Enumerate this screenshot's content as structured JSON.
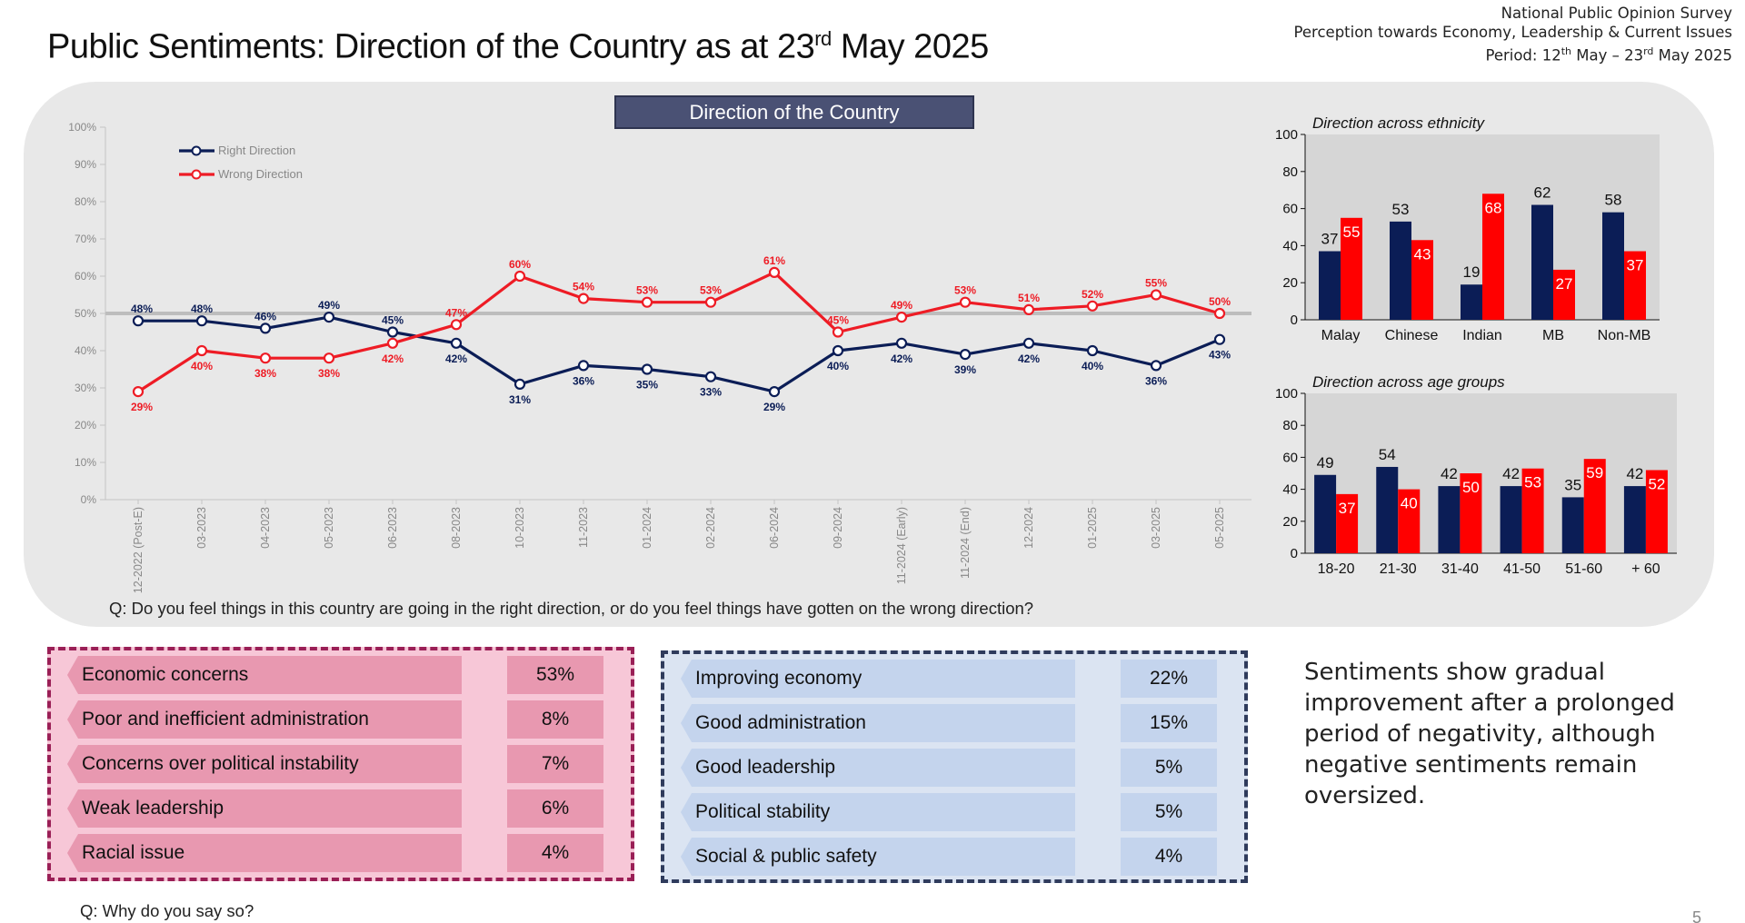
{
  "header": {
    "title_main": "Public Sentiments: Direction of the Country as at 23",
    "title_sup": "rd",
    "title_end": " May 2025",
    "survey_line1": "National Public Opinion Survey",
    "survey_line2": "Perception towards Economy, Leadership & Current Issues",
    "period_pre": "Period: 12",
    "period_sup1": "th",
    "period_mid": " May – 23",
    "period_sup2": "rd",
    "period_end": " May 2025"
  },
  "chart_data": [
    {
      "type": "line",
      "title": "Direction of the Country",
      "categories": [
        "12-2022 (Post-E)",
        "03-2023",
        "04-2023",
        "05-2023",
        "06-2023",
        "08-2023",
        "10-2023",
        "11-2023",
        "01-2024",
        "02-2024",
        "06-2024",
        "09-2024",
        "11-2024 (Early)",
        "11-2024 (End)",
        "12-2024",
        "01-2025",
        "03-2025",
        "05-2025"
      ],
      "series": [
        {
          "name": "Right Direction",
          "color": "#0b1d56",
          "values": [
            48,
            48,
            46,
            49,
            45,
            42,
            31,
            36,
            35,
            33,
            29,
            40,
            42,
            39,
            42,
            40,
            36,
            43
          ]
        },
        {
          "name": "Wrong Direction",
          "color": "#ee1c25",
          "values": [
            29,
            40,
            38,
            38,
            42,
            47,
            60,
            54,
            53,
            53,
            61,
            45,
            49,
            53,
            51,
            52,
            55,
            50
          ]
        }
      ],
      "ylim": [
        0,
        100
      ],
      "yticks": [
        "0%",
        "10%",
        "20%",
        "30%",
        "40%",
        "50%",
        "60%",
        "70%",
        "80%",
        "90%",
        "100%"
      ],
      "reference_line": 50,
      "legend": "top-left"
    },
    {
      "type": "bar",
      "title": "Direction across ethnicity",
      "categories": [
        "Malay",
        "Chinese",
        "Indian",
        "MB",
        "Non-MB"
      ],
      "series": [
        {
          "name": "Right Direction",
          "color": "#0b1d56",
          "values": [
            37,
            53,
            19,
            62,
            58
          ]
        },
        {
          "name": "Wrong Direction",
          "color": "#ff0000",
          "values": [
            55,
            43,
            68,
            27,
            37
          ]
        }
      ],
      "ylim": [
        0,
        100
      ],
      "yticks": [
        "0",
        "20",
        "40",
        "60",
        "80",
        "100"
      ]
    },
    {
      "type": "bar",
      "title": "Direction across age groups",
      "categories": [
        "18-20",
        "21-30",
        "31-40",
        "41-50",
        "51-60",
        "+ 60"
      ],
      "series": [
        {
          "name": "Right Direction",
          "color": "#0b1d56",
          "values": [
            49,
            54,
            42,
            42,
            35,
            42
          ]
        },
        {
          "name": "Wrong Direction",
          "color": "#ff0000",
          "values": [
            37,
            40,
            50,
            53,
            59,
            52
          ]
        }
      ],
      "ylim": [
        0,
        100
      ],
      "yticks": [
        "0",
        "20",
        "40",
        "60",
        "80",
        "100"
      ]
    }
  ],
  "question1": "Q: Do you feel things in this country are going in the right direction, or do you feel things have gotten on the wrong direction?",
  "negative_reasons": [
    {
      "label": "Economic concerns",
      "value": "53%"
    },
    {
      "label": "Poor and inefficient administration",
      "value": "8%"
    },
    {
      "label": "Concerns over political instability",
      "value": "7%"
    },
    {
      "label": "Weak leadership",
      "value": "6%"
    },
    {
      "label": "Racial issue",
      "value": "4%"
    }
  ],
  "positive_reasons": [
    {
      "label": "Improving economy",
      "value": "22%"
    },
    {
      "label": "Good administration",
      "value": "15%"
    },
    {
      "label": "Good leadership",
      "value": "5%"
    },
    {
      "label": "Political stability",
      "value": "5%"
    },
    {
      "label": "Social & public safety",
      "value": "4%"
    }
  ],
  "insight": "Sentiments show gradual improvement after a prolonged period of negativity, although negative sentiments remain oversized.",
  "question2": "Q: Why do you say so?",
  "page_number": "5",
  "colors": {
    "right": "#0b1d56",
    "wrong_line": "#ee1c25",
    "wrong_bar": "#ff0000",
    "panel": "#e8e8e8",
    "title_bar": "#4a5174",
    "negative_box": "#f7c7d7",
    "positive_box": "#dbe4f2"
  }
}
